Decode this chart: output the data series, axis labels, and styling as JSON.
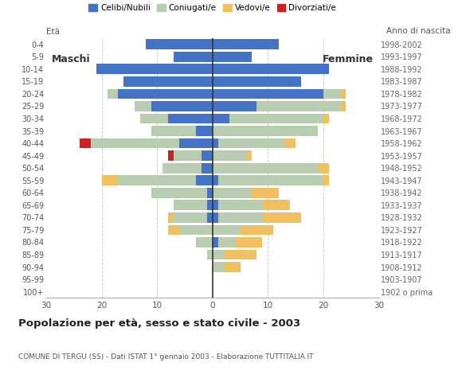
{
  "age_groups": [
    "100+",
    "95-99",
    "90-94",
    "85-89",
    "80-84",
    "75-79",
    "70-74",
    "65-69",
    "60-64",
    "55-59",
    "50-54",
    "45-49",
    "40-44",
    "35-39",
    "30-34",
    "25-29",
    "20-24",
    "15-19",
    "10-14",
    "5-9",
    "0-4"
  ],
  "birth_years": [
    "1902 o prima",
    "1903-1907",
    "1908-1912",
    "1913-1917",
    "1918-1922",
    "1923-1927",
    "1928-1932",
    "1933-1937",
    "1938-1942",
    "1943-1947",
    "1948-1952",
    "1953-1957",
    "1958-1962",
    "1963-1967",
    "1968-1972",
    "1973-1977",
    "1978-1982",
    "1983-1987",
    "1988-1992",
    "1993-1997",
    "1998-2002"
  ],
  "males": {
    "celibe": [
      0,
      0,
      0,
      0,
      0,
      0,
      1,
      1,
      1,
      3,
      2,
      2,
      6,
      3,
      8,
      11,
      17,
      16,
      21,
      7,
      12
    ],
    "coniugato": [
      0,
      0,
      0,
      1,
      3,
      6,
      6,
      6,
      10,
      14,
      7,
      5,
      16,
      8,
      5,
      3,
      2,
      0,
      0,
      0,
      0
    ],
    "vedovo": [
      0,
      0,
      0,
      0,
      0,
      2,
      1,
      0,
      0,
      3,
      0,
      0,
      0,
      0,
      0,
      0,
      0,
      0,
      0,
      0,
      0
    ],
    "divorziato": [
      0,
      0,
      0,
      0,
      0,
      0,
      0,
      0,
      0,
      0,
      0,
      1,
      2,
      0,
      0,
      0,
      0,
      0,
      0,
      0,
      0
    ]
  },
  "females": {
    "nubile": [
      0,
      0,
      0,
      0,
      1,
      0,
      1,
      1,
      0,
      1,
      0,
      0,
      1,
      0,
      3,
      8,
      20,
      16,
      21,
      7,
      12
    ],
    "coniugata": [
      0,
      0,
      2,
      2,
      3,
      5,
      8,
      8,
      7,
      19,
      19,
      6,
      12,
      19,
      17,
      15,
      3,
      0,
      0,
      0,
      0
    ],
    "vedova": [
      0,
      0,
      3,
      6,
      5,
      6,
      7,
      5,
      5,
      1,
      2,
      1,
      2,
      0,
      1,
      1,
      1,
      0,
      0,
      0,
      0
    ],
    "divorziata": [
      0,
      0,
      0,
      0,
      0,
      0,
      0,
      0,
      0,
      0,
      0,
      0,
      0,
      0,
      0,
      0,
      0,
      0,
      0,
      0,
      0
    ]
  },
  "colors": {
    "celibe": "#4472C4",
    "coniugato": "#B8CCB0",
    "vedovo": "#F0C060",
    "divorziato": "#CC2222"
  },
  "title": "Popolazione per età, sesso e stato civile - 2003",
  "subtitle": "COMUNE DI TERGU (SS) - Dati ISTAT 1° gennaio 2003 - Elaborazione TUTTITALIA.IT",
  "xlim": 30,
  "legend_labels": [
    "Celibi/Nubili",
    "Coniugati/e",
    "Vedovi/e",
    "Divorziati/e"
  ],
  "xlabel_left": "Maschi",
  "xlabel_right": "Femmine",
  "ylabel_right": "Anno di nascita",
  "background_color": "#FFFFFF"
}
